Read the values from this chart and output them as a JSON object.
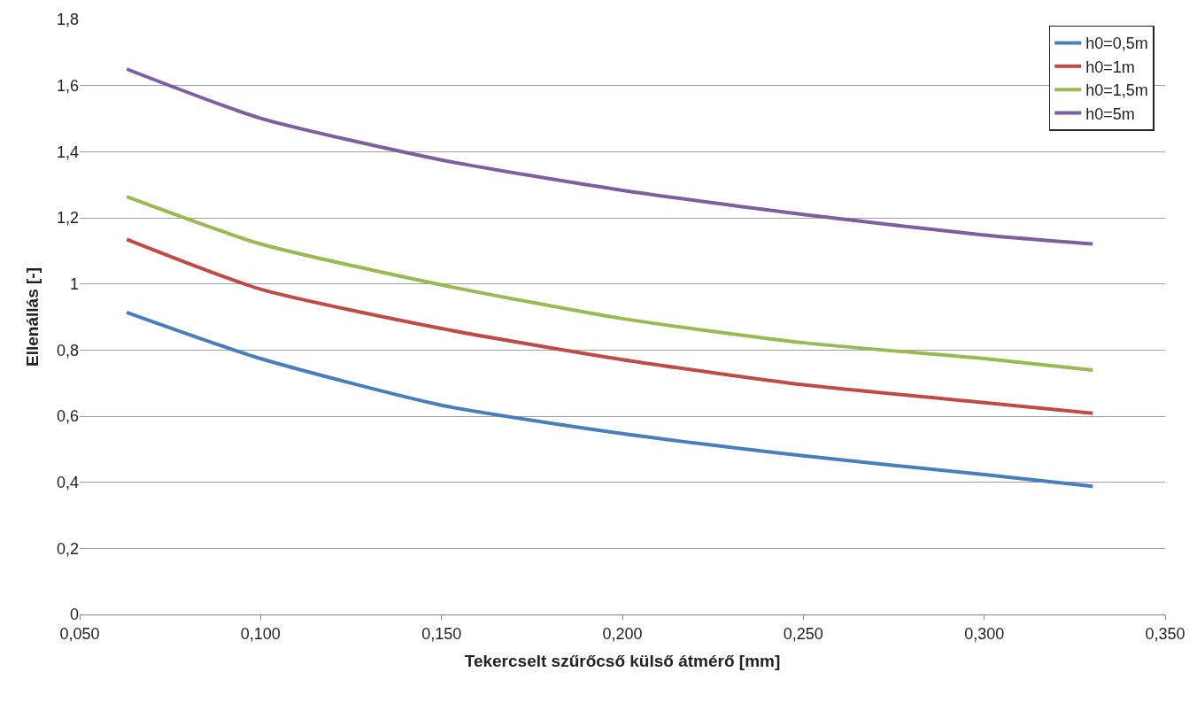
{
  "chart_data": {
    "type": "line",
    "xlabel": "Tekercselt szűrőcső külső átmérő [mm]",
    "ylabel": "Ellenállás [-]",
    "x": [
      0.063,
      0.1,
      0.15,
      0.2,
      0.25,
      0.3,
      0.33
    ],
    "series": [
      {
        "name": "h0=0,5m",
        "color": "#4a7ebb",
        "values": [
          0.914,
          0.774,
          0.633,
          0.547,
          0.48,
          0.423,
          0.388
        ]
      },
      {
        "name": "h0=1m",
        "color": "#be4b48",
        "values": [
          1.135,
          0.984,
          0.865,
          0.771,
          0.695,
          0.641,
          0.609
        ]
      },
      {
        "name": "h0=1,5m",
        "color": "#98b954",
        "values": [
          1.264,
          1.121,
          0.997,
          0.895,
          0.822,
          0.774,
          0.739
        ]
      },
      {
        "name": "h0=5m",
        "color": "#7d5fa0",
        "values": [
          1.65,
          1.501,
          1.375,
          1.283,
          1.21,
          1.148,
          1.121
        ]
      }
    ],
    "xlim": [
      0.05,
      0.35
    ],
    "xticks": [
      {
        "value": 0.05,
        "label": "0,050"
      },
      {
        "value": 0.1,
        "label": "0,100"
      },
      {
        "value": 0.15,
        "label": "0,150"
      },
      {
        "value": 0.2,
        "label": "0,200"
      },
      {
        "value": 0.25,
        "label": "0,250"
      },
      {
        "value": 0.3,
        "label": "0,300"
      },
      {
        "value": 0.35,
        "label": "0,350"
      }
    ],
    "ylim": [
      0,
      1.8
    ],
    "yticks": [
      0,
      {
        "value": 0.2,
        "label": "0,2"
      },
      {
        "value": 0.4,
        "label": "0,4"
      },
      {
        "value": 0.6,
        "label": "0,6"
      },
      {
        "value": 0.8,
        "label": "0,8"
      },
      1,
      {
        "value": 1.2,
        "label": "1,2"
      },
      {
        "value": 1.4,
        "label": "1,4"
      },
      {
        "value": 1.6,
        "label": "1,6"
      },
      {
        "value": 1.8,
        "label": "1,8"
      }
    ],
    "grid": "y",
    "legend": "top right",
    "marker": "none",
    "line_style": "solid"
  }
}
